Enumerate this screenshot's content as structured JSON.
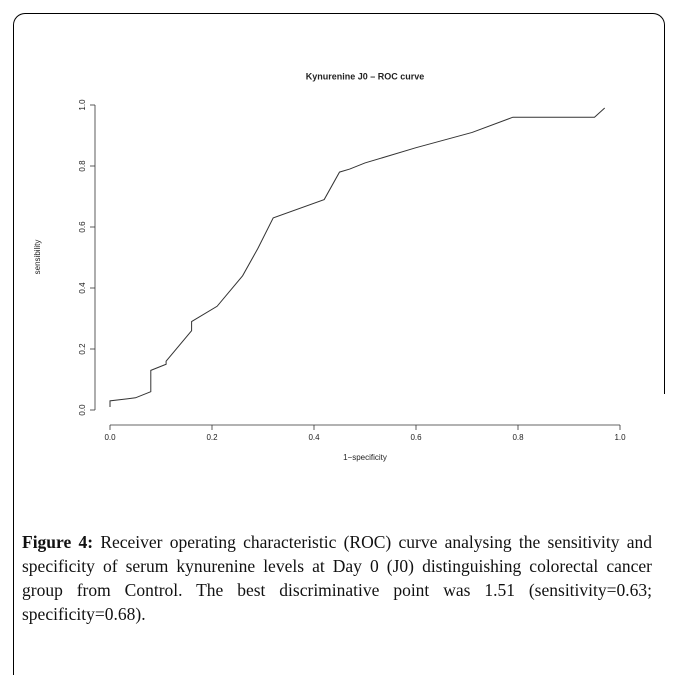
{
  "chart_data": {
    "type": "line",
    "title": "Kynurenine J0 – ROC curve",
    "x_label": "1−specificity",
    "y_label": "sensibility",
    "series": [
      {
        "color": "#333333",
        "x": [
          0,
          0,
          0.05,
          0.08,
          0.08,
          0.11,
          0.11,
          0.16,
          0.16,
          0.21,
          0.26,
          0.29,
          0.32,
          0.42,
          0.45,
          0.47,
          0.5,
          0.6,
          0.71,
          0.79,
          0.95,
          0.97
        ],
        "values": [
          0.01,
          0.03,
          0.04,
          0.06,
          0.13,
          0.15,
          0.16,
          0.26,
          0.29,
          0.34,
          0.44,
          0.53,
          0.63,
          0.69,
          0.78,
          0.79,
          0.81,
          0.86,
          0.91,
          0.96,
          0.96,
          0.99
        ]
      }
    ],
    "xlim": [
      0,
      1
    ],
    "ylim": [
      0,
      1
    ],
    "xticks": [
      {
        "value": 0,
        "label": "0.0"
      },
      {
        "value": 0.2,
        "label": "0.2"
      },
      {
        "value": 0.4,
        "label": "0.4"
      },
      {
        "value": 0.6,
        "label": "0.6"
      },
      {
        "value": 0.8,
        "label": "0.8"
      },
      {
        "value": 1,
        "label": "1.0"
      }
    ],
    "yticks": [
      {
        "value": 0,
        "label": "0.0"
      },
      {
        "value": 0.2,
        "label": "0.2"
      },
      {
        "value": 0.4,
        "label": "0.4"
      },
      {
        "value": 0.6,
        "label": "0.6"
      },
      {
        "value": 0.8,
        "label": "0.8"
      },
      {
        "value": 1,
        "label": "1.0"
      }
    ],
    "grid": false
  },
  "caption": {
    "label": "Figure 4:",
    "text": "Receiver operating characteristic (ROC) curve analysing the sensitivity and specificity of serum kynurenine levels at Day 0 (J0) distinguishing colorectal cancer group from Control. The best discriminative point was 1.51 (sensitivity=0.63; specificity=0.68)."
  }
}
